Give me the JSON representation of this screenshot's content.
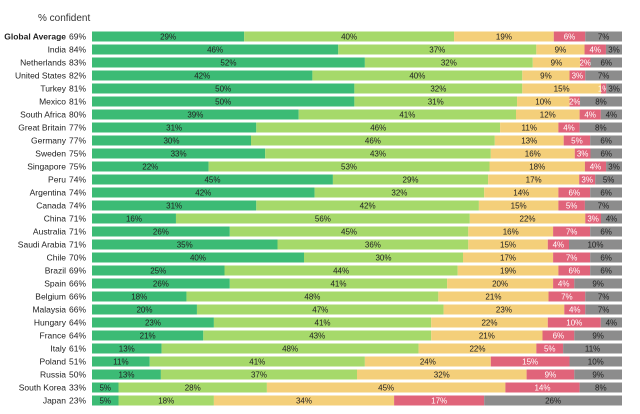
{
  "header": {
    "pct_confident": "% confident"
  },
  "chart_data": {
    "type": "bar",
    "orientation": "horizontal",
    "stacked": true,
    "segment_labels_suffix": "%",
    "categories": [
      "Global Average",
      "India",
      "Netherlands",
      "United States",
      "Turkey",
      "Mexico",
      "South Africa",
      "Great Britain",
      "Germany",
      "Sweden",
      "Singapore",
      "Peru",
      "Argentina",
      "Canada",
      "China",
      "Australia",
      "Saudi Arabia",
      "Chile",
      "Brazil",
      "Spain",
      "Belgium",
      "Malaysia",
      "Hungary",
      "France",
      "Italy",
      "Poland",
      "Russia",
      "South Korea",
      "Japan"
    ],
    "confident_labels": [
      "69%",
      "84%",
      "83%",
      "82%",
      "81%",
      "81%",
      "80%",
      "77%",
      "77%",
      "75%",
      "75%",
      "74%",
      "74%",
      "74%",
      "71%",
      "71%",
      "71%",
      "70%",
      "69%",
      "66%",
      "66%",
      "66%",
      "64%",
      "64%",
      "61%",
      "51%",
      "50%",
      "33%",
      "23%"
    ],
    "series": [
      {
        "color": "#3cbb75",
        "values": [
          29,
          46,
          52,
          42,
          50,
          50,
          39,
          31,
          30,
          33,
          22,
          45,
          42,
          31,
          16,
          26,
          35,
          40,
          25,
          26,
          18,
          20,
          23,
          21,
          13,
          11,
          13,
          5,
          5
        ]
      },
      {
        "color": "#a6d96a",
        "values": [
          40,
          37,
          32,
          40,
          32,
          31,
          41,
          46,
          46,
          43,
          53,
          29,
          32,
          42,
          56,
          45,
          36,
          30,
          44,
          41,
          48,
          47,
          41,
          43,
          48,
          41,
          37,
          28,
          18
        ]
      },
      {
        "color": "#f4cf7a",
        "values": [
          19,
          9,
          9,
          9,
          15,
          10,
          12,
          11,
          13,
          16,
          18,
          17,
          14,
          15,
          22,
          16,
          15,
          17,
          19,
          20,
          21,
          23,
          22,
          21,
          22,
          24,
          32,
          45,
          34
        ]
      },
      {
        "color": "#e0647a",
        "values": [
          6,
          4,
          2,
          3,
          1,
          2,
          4,
          4,
          5,
          3,
          4,
          3,
          6,
          5,
          3,
          7,
          4,
          7,
          6,
          4,
          7,
          4,
          10,
          6,
          5,
          15,
          9,
          14,
          17
        ]
      },
      {
        "color": "#8c8c8c",
        "values": [
          7,
          3,
          6,
          7,
          3,
          8,
          4,
          8,
          6,
          6,
          3,
          5,
          6,
          7,
          4,
          6,
          10,
          6,
          6,
          9,
          7,
          7,
          4,
          9,
          11,
          10,
          9,
          8,
          26
        ]
      }
    ],
    "xlim": [
      0,
      100
    ],
    "grid": false,
    "legend": "none"
  }
}
